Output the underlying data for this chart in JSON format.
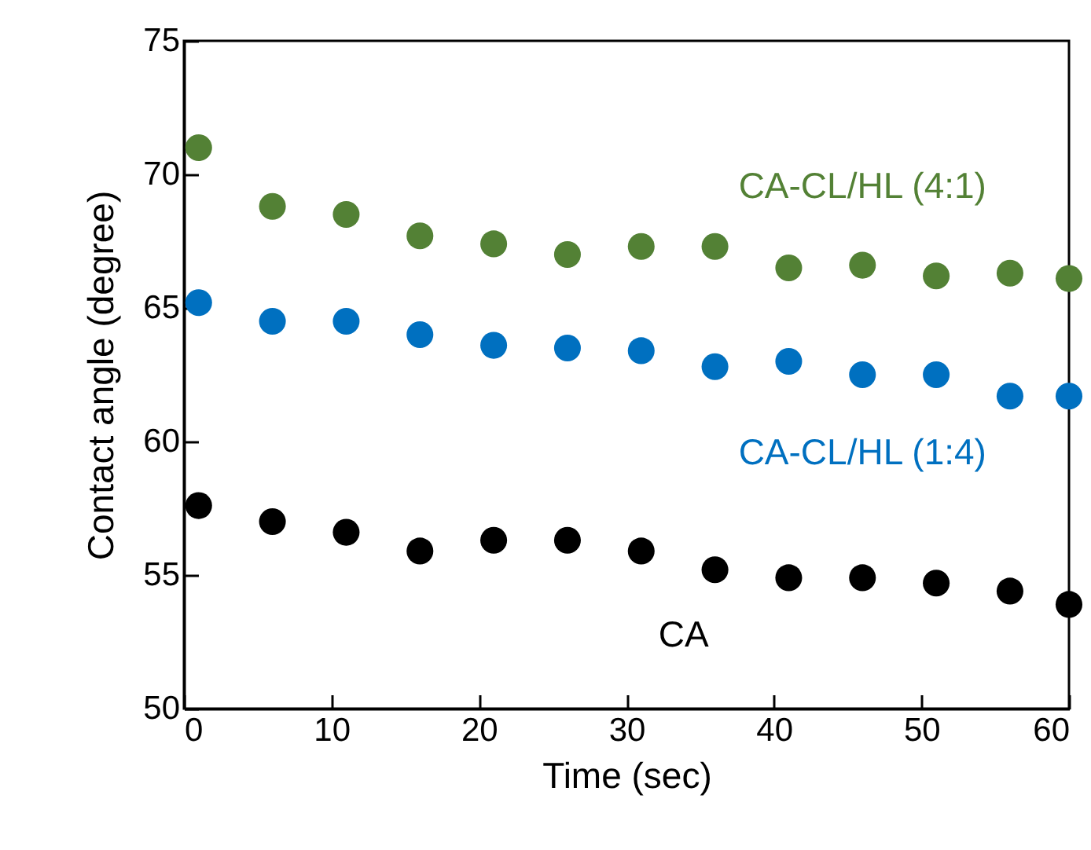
{
  "chart_data": {
    "type": "scatter",
    "xlabel": "Time (sec)",
    "ylabel": "Contact angle (degree)",
    "x": [
      1,
      6,
      11,
      16,
      21,
      26,
      31,
      36,
      41,
      46,
      51,
      56,
      60
    ],
    "xlim": [
      0,
      60
    ],
    "xticks": [
      0,
      10,
      20,
      30,
      40,
      50,
      60
    ],
    "ylim": [
      50,
      75
    ],
    "yticks": [
      50,
      55,
      60,
      65,
      70,
      75
    ],
    "marker": "circle",
    "series": [
      {
        "name": "CA-CL/HL (4:1)",
        "color": "#538135",
        "values": [
          71.0,
          68.8,
          68.5,
          67.7,
          67.4,
          67.0,
          67.3,
          67.3,
          66.5,
          66.6,
          66.2,
          66.3,
          66.1
        ]
      },
      {
        "name": "CA-CL/HL (1:4)",
        "color": "#0070c0",
        "values": [
          65.2,
          64.5,
          64.5,
          64.0,
          63.6,
          63.5,
          63.4,
          62.8,
          63.0,
          62.5,
          62.5,
          61.7,
          61.7
        ]
      },
      {
        "name": "CA",
        "color": "#000000",
        "values": [
          57.6,
          57.0,
          56.6,
          55.9,
          56.3,
          56.3,
          55.9,
          55.2,
          54.9,
          54.9,
          54.7,
          54.4,
          53.9
        ]
      }
    ]
  }
}
